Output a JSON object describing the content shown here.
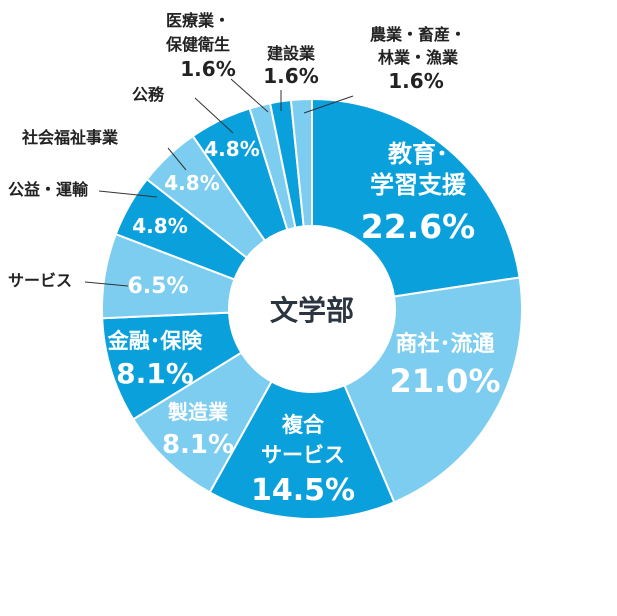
{
  "chart_data": {
    "type": "pie",
    "variant": "donut",
    "center_label": "文学部",
    "unit": "%",
    "series": [
      {
        "values": [
          22.6,
          21.0,
          14.5,
          8.1,
          8.1,
          6.5,
          4.8,
          4.8,
          4.8,
          1.6,
          1.6,
          1.6
        ],
        "labels": [
          "教育・学習支援",
          "商社・流通",
          "複合サービス",
          "製造業",
          "金融・保険",
          "サービス",
          "公益・運輸",
          "社会福祉事業",
          "公務",
          "医療業・保健衛生",
          "建設業",
          "農業・畜産・林業・漁業"
        ]
      }
    ],
    "slices": [
      {
        "name": "教育・学習支援",
        "lines": [
          "教育･",
          "学習支援"
        ],
        "value_text": "22.6%",
        "value": 22.6,
        "color": "#0aa0dc",
        "label_pos": "inside"
      },
      {
        "name": "商社・流通",
        "lines": [
          "商社･流通"
        ],
        "value_text": "21.0%",
        "value": 21.0,
        "color": "#7ccdef",
        "label_pos": "inside"
      },
      {
        "name": "複合サービス",
        "lines": [
          "複合",
          "サービス"
        ],
        "value_text": "14.5%",
        "value": 14.5,
        "color": "#0aa0dc",
        "label_pos": "inside"
      },
      {
        "name": "製造業",
        "lines": [
          "製造業"
        ],
        "value_text": "8.1%",
        "value": 8.1,
        "color": "#7ccdef",
        "label_pos": "inside"
      },
      {
        "name": "金融・保険",
        "lines": [
          "金融･保険"
        ],
        "value_text": "8.1%",
        "value": 8.1,
        "color": "#0aa0dc",
        "label_pos": "inside"
      },
      {
        "name": "サービス",
        "lines": [
          "サービス"
        ],
        "value_text": "6.5%",
        "value": 6.5,
        "color": "#7ccdef",
        "label_pos": "outside"
      },
      {
        "name": "公益・運輸",
        "lines": [
          "公益・運輸"
        ],
        "value_text": "4.8%",
        "value": 4.8,
        "color": "#0aa0dc",
        "label_pos": "outside"
      },
      {
        "name": "社会福祉事業",
        "lines": [
          "社会福祉事業"
        ],
        "value_text": "4.8%",
        "value": 4.8,
        "color": "#7ccdef",
        "label_pos": "outside"
      },
      {
        "name": "公務",
        "lines": [
          "公務"
        ],
        "value_text": "4.8%",
        "value": 4.8,
        "color": "#0aa0dc",
        "label_pos": "outside"
      },
      {
        "name": "医療業・保健衛生",
        "lines": [
          "医療業・",
          "保健衛生"
        ],
        "value_text": "1.6%",
        "value": 1.6,
        "color": "#7ccdef",
        "label_pos": "outside"
      },
      {
        "name": "建設業",
        "lines": [
          "建設業"
        ],
        "value_text": "1.6%",
        "value": 1.6,
        "color": "#0aa0dc",
        "label_pos": "outside"
      },
      {
        "name": "農業・畜産・林業・漁業",
        "lines": [
          "農業・畜産・",
          "林業・漁業"
        ],
        "value_text": "1.6%",
        "value": 1.6,
        "color": "#7ccdef",
        "label_pos": "outside"
      }
    ],
    "legend": "none",
    "grid": false
  }
}
